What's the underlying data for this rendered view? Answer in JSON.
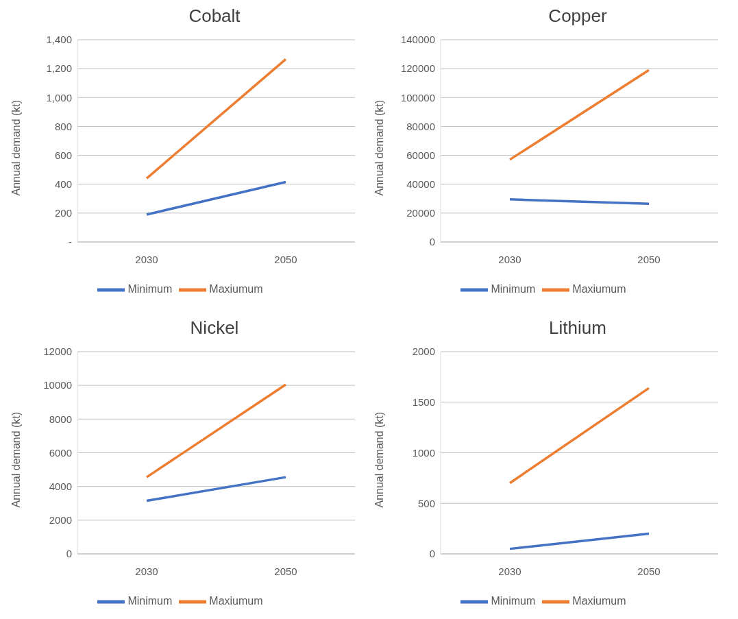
{
  "chart_data": [
    {
      "type": "line",
      "title": "Cobalt",
      "ylabel": "Annual demand (kt)",
      "categories": [
        "2030",
        "2050"
      ],
      "ylim": [
        0,
        1400
      ],
      "yticks": [
        {
          "value": 0,
          "label": "-"
        },
        200,
        400,
        600,
        800,
        {
          "value": 1000,
          "label": "1,000"
        },
        {
          "value": 1200,
          "label": "1,200"
        },
        {
          "value": 1400,
          "label": "1,400"
        }
      ],
      "grid": "y",
      "legend": "bottom",
      "marker": "none",
      "series": [
        {
          "name": "Minimum",
          "color": "#4472c4",
          "values": [
            190,
            415
          ]
        },
        {
          "name": "Maxiumum",
          "color": "#ed7d31",
          "values": [
            440,
            1265
          ]
        }
      ]
    },
    {
      "type": "line",
      "title": "Copper",
      "ylabel": "Annual demand (kt)",
      "categories": [
        "2030",
        "2050"
      ],
      "ylim": [
        0,
        140000
      ],
      "yticks": [
        0,
        20000,
        40000,
        60000,
        80000,
        100000,
        120000,
        140000
      ],
      "grid": "y",
      "legend": "bottom",
      "marker": "none",
      "series": [
        {
          "name": "Minimum",
          "color": "#4472c4",
          "values": [
            29500,
            26500
          ]
        },
        {
          "name": "Maxiumum",
          "color": "#ed7d31",
          "values": [
            57000,
            119000
          ]
        }
      ]
    },
    {
      "type": "line",
      "title": "Nickel",
      "ylabel": "Annual demand (kt)",
      "categories": [
        "2030",
        "2050"
      ],
      "ylim": [
        0,
        12000
      ],
      "yticks": [
        0,
        2000,
        4000,
        6000,
        8000,
        10000,
        12000
      ],
      "grid": "y",
      "legend": "bottom",
      "marker": "none",
      "series": [
        {
          "name": "Minimum",
          "color": "#4472c4",
          "values": [
            3150,
            4550
          ]
        },
        {
          "name": "Maxiumum",
          "color": "#ed7d31",
          "values": [
            4550,
            10050
          ]
        }
      ]
    },
    {
      "type": "line",
      "title": "Lithium",
      "ylabel": "Annual demand (kt)",
      "categories": [
        "2030",
        "2050"
      ],
      "ylim": [
        0,
        2000
      ],
      "yticks": [
        0,
        500,
        1000,
        1500,
        2000
      ],
      "grid": "y",
      "legend": "bottom",
      "marker": "none",
      "series": [
        {
          "name": "Minimum",
          "color": "#4472c4",
          "values": [
            50,
            200
          ]
        },
        {
          "name": "Maxiumum",
          "color": "#ed7d31",
          "values": [
            700,
            1640
          ]
        }
      ]
    }
  ]
}
